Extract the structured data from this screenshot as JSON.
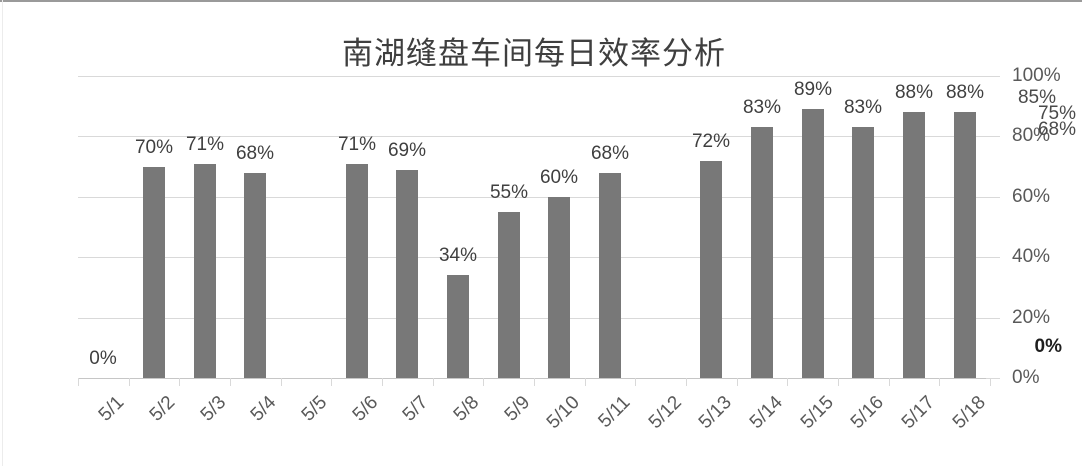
{
  "chart_data": {
    "type": "bar",
    "title": "南湖缝盘车间每日效率分析",
    "categories": [
      "5/1",
      "5/2",
      "5/3",
      "5/4",
      "5/5",
      "5/6",
      "5/7",
      "5/8",
      "5/9",
      "5/10",
      "5/11",
      "5/12",
      "5/13",
      "5/14",
      "5/15",
      "5/16",
      "5/17",
      "5/18"
    ],
    "values": [
      0,
      70,
      71,
      68,
      null,
      71,
      69,
      34,
      55,
      60,
      68,
      null,
      72,
      83,
      89,
      83,
      88,
      88
    ],
    "data_labels": [
      "0%",
      "70%",
      "71%",
      "68%",
      "",
      "71%",
      "69%",
      "34%",
      "55%",
      "60%",
      "68%",
      "",
      "72%",
      "83%",
      "89%",
      "83%",
      "88%",
      "88%"
    ],
    "xlabel": "",
    "ylabel": "",
    "ylim": [
      0,
      100
    ],
    "y_axis": {
      "side": "right",
      "ticks": [
        "100%",
        "80%",
        "60%",
        "40%",
        "20%",
        "0%"
      ],
      "tick_values": [
        100,
        80,
        60,
        40,
        20,
        0
      ],
      "grid": true
    },
    "extra_right_labels": {
      "stacked_under_100": [
        "85%",
        "75%",
        "68%"
      ],
      "bold_near_zero": "0%"
    },
    "legend": "none",
    "colors": {
      "bar": "#787878",
      "gridline": "#d9d9d9",
      "axis_text": "#595959",
      "data_label_text": "#3f3f3f",
      "title_text": "#3f3f3f",
      "background": "#ffffff"
    }
  }
}
